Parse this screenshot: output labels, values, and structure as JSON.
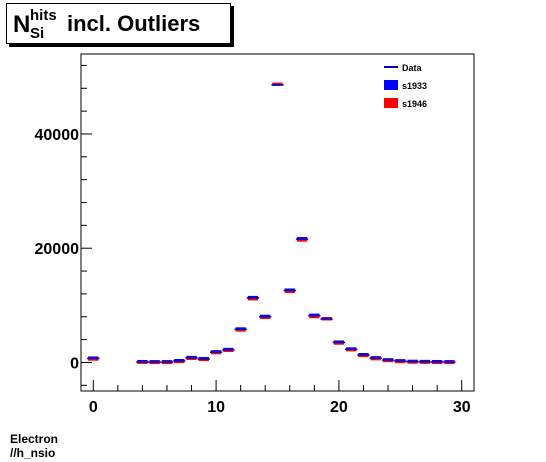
{
  "chart_data": {
    "type": "histogram",
    "title": {
      "symbol": "N",
      "superscript": "hits",
      "subscript": "Si",
      "text": "incl. Outliers"
    },
    "x": [
      0,
      1,
      2,
      3,
      4,
      5,
      6,
      7,
      8,
      9,
      10,
      11,
      12,
      13,
      14,
      15,
      16,
      17,
      18,
      19,
      20,
      21,
      22,
      23,
      24,
      25,
      26,
      27,
      28,
      29
    ],
    "xlim": [
      -1,
      31
    ],
    "ylim": [
      -5000,
      54000
    ],
    "xticks": [
      0,
      10,
      20,
      30
    ],
    "yticks": [
      0,
      20000,
      40000
    ],
    "series": [
      {
        "name": "Data",
        "style": "line",
        "color": "#0000cc",
        "values": [
          700,
          null,
          null,
          null,
          80,
          60,
          60,
          250,
          800,
          600,
          1800,
          2200,
          5800,
          11300,
          8000,
          48600,
          12600,
          21600,
          8200,
          7600,
          3500,
          2300,
          1300,
          750,
          400,
          230,
          130,
          100,
          80,
          60
        ]
      },
      {
        "name": "s1933",
        "style": "fill",
        "color": "#0000ff",
        "values": [
          700,
          null,
          null,
          null,
          80,
          60,
          60,
          250,
          800,
          600,
          1800,
          2200,
          5800,
          11300,
          8000,
          48600,
          12600,
          21600,
          8200,
          7600,
          3500,
          2300,
          1300,
          750,
          400,
          230,
          130,
          100,
          80,
          60
        ]
      },
      {
        "name": "s1946",
        "style": "fill",
        "color": "#ff0000",
        "values": [
          650,
          null,
          null,
          null,
          80,
          60,
          60,
          230,
          780,
          590,
          1780,
          2180,
          5750,
          11200,
          7950,
          48800,
          12500,
          21500,
          8100,
          7700,
          3450,
          2280,
          1280,
          720,
          390,
          220,
          130,
          100,
          80,
          60
        ]
      }
    ],
    "legend": "top-right"
  },
  "footer": {
    "line1": "Electron",
    "line2": "//h_nsio"
  }
}
